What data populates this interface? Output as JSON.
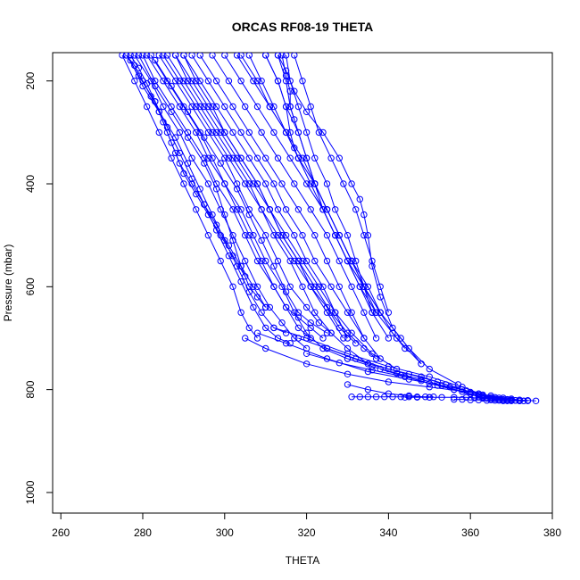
{
  "chart_data": {
    "type": "line",
    "title": "ORCAS RF08-19 THETA",
    "xlabel": "THETA",
    "ylabel": "Pressure (mbar)",
    "xlim": [
      258,
      380
    ],
    "ylim": [
      1040,
      145
    ],
    "y_reversed": true,
    "x_ticks": [
      260,
      280,
      300,
      320,
      340,
      360,
      380
    ],
    "y_ticks": [
      200,
      400,
      600,
      800,
      1000
    ],
    "grid": false,
    "legend": "none",
    "line_color": "#0000ff",
    "marker": "open-circle",
    "line_style": "solid",
    "series": [
      {
        "x": [
          275,
          278,
          281,
          284,
          287,
          290,
          293,
          296,
          299,
          302,
          304,
          306,
          308
        ],
        "y": [
          150,
          200,
          250,
          300,
          350,
          400,
          450,
          500,
          550,
          600,
          650,
          680,
          700
        ]
      },
      {
        "x": [
          276,
          279,
          283,
          286,
          289,
          292,
          295,
          298,
          301,
          304,
          307,
          310,
          313,
          316
        ],
        "y": [
          150,
          190,
          240,
          290,
          340,
          390,
          440,
          490,
          540,
          590,
          640,
          680,
          700,
          710
        ]
      },
      {
        "x": [
          277,
          280,
          284,
          288,
          291,
          294,
          297,
          300,
          303,
          306,
          309,
          312,
          315
        ],
        "y": [
          160,
          210,
          260,
          310,
          360,
          410,
          460,
          510,
          560,
          610,
          650,
          680,
          690
        ]
      },
      {
        "x": [
          278,
          282,
          285,
          289,
          292,
          296,
          299,
          302,
          305,
          308,
          311,
          314,
          317,
          320
        ],
        "y": [
          150,
          200,
          250,
          300,
          350,
          400,
          450,
          500,
          550,
          600,
          640,
          670,
          700,
          720
        ]
      },
      {
        "x": [
          280,
          283,
          287,
          291,
          295,
          298,
          302,
          305,
          308,
          312,
          315,
          318,
          321
        ],
        "y": [
          150,
          200,
          250,
          300,
          350,
          400,
          450,
          500,
          550,
          600,
          640,
          680,
          700
        ]
      },
      {
        "x": [
          282,
          286,
          290,
          294,
          297,
          300,
          304,
          307,
          310,
          314,
          317,
          320,
          324,
          330
        ],
        "y": [
          150,
          200,
          250,
          300,
          350,
          400,
          450,
          500,
          550,
          600,
          650,
          690,
          720,
          740
        ]
      },
      {
        "x": [
          284,
          288,
          292,
          296,
          300,
          303,
          306,
          310,
          313,
          316,
          320,
          323,
          326
        ],
        "y": [
          150,
          200,
          250,
          300,
          350,
          400,
          450,
          500,
          550,
          600,
          640,
          670,
          690
        ]
      },
      {
        "x": [
          286,
          290,
          294,
          298,
          302,
          306,
          309,
          312,
          316,
          319,
          322,
          326,
          330,
          335
        ],
        "y": [
          150,
          200,
          250,
          300,
          350,
          400,
          450,
          500,
          550,
          600,
          650,
          690,
          720,
          750
        ]
      },
      {
        "x": [
          288,
          292,
          296,
          300,
          304,
          308,
          311,
          314,
          318,
          321,
          325,
          328,
          332
        ],
        "y": [
          150,
          200,
          250,
          300,
          350,
          400,
          450,
          500,
          550,
          600,
          640,
          680,
          710
        ]
      },
      {
        "x": [
          290,
          294,
          298,
          302,
          306,
          310,
          313,
          317,
          320,
          324,
          327,
          331,
          336,
          342
        ],
        "y": [
          150,
          200,
          250,
          300,
          350,
          400,
          450,
          500,
          550,
          600,
          650,
          690,
          730,
          760
        ]
      },
      {
        "x": [
          292,
          296,
          300,
          304,
          308,
          312,
          315,
          319,
          322,
          326,
          330,
          334
        ],
        "y": [
          150,
          200,
          250,
          300,
          350,
          400,
          450,
          500,
          550,
          600,
          650,
          700
        ]
      },
      {
        "x": [
          294,
          298,
          302,
          306,
          310,
          314,
          318,
          322,
          325,
          328,
          331,
          334,
          338
        ],
        "y": [
          150,
          200,
          250,
          300,
          350,
          400,
          450,
          500,
          550,
          600,
          650,
          700,
          740
        ]
      },
      {
        "x": [
          297,
          301,
          305,
          309,
          313,
          317,
          321,
          325,
          328,
          331,
          334,
          337
        ],
        "y": [
          150,
          200,
          250,
          300,
          350,
          400,
          450,
          500,
          550,
          600,
          650,
          700
        ]
      },
      {
        "x": [
          300,
          304,
          308,
          312,
          316,
          320,
          324,
          327,
          330,
          333,
          336,
          340
        ],
        "y": [
          150,
          200,
          250,
          300,
          350,
          400,
          450,
          500,
          550,
          600,
          650,
          700
        ]
      },
      {
        "x": [
          303,
          307,
          311,
          315,
          319,
          322,
          325,
          328,
          331,
          334,
          338
        ],
        "y": [
          150,
          200,
          250,
          300,
          350,
          400,
          450,
          500,
          550,
          600,
          650
        ]
      },
      {
        "x": [
          306,
          309,
          312,
          315,
          318,
          321,
          324,
          327,
          330,
          334,
          338,
          343,
          348
        ],
        "y": [
          150,
          200,
          250,
          300,
          350,
          400,
          450,
          500,
          550,
          600,
          650,
          700,
          750
        ]
      },
      {
        "x": [
          310,
          313,
          315,
          318,
          320,
          322,
          325,
          328,
          331,
          334,
          337
        ],
        "y": [
          150,
          200,
          250,
          300,
          350,
          400,
          450,
          500,
          550,
          600,
          650
        ]
      },
      {
        "x": [
          313,
          315,
          316,
          318,
          320,
          322,
          324,
          327,
          330,
          333,
          337,
          342,
          348
        ],
        "y": [
          150,
          200,
          250,
          300,
          350,
          400,
          450,
          500,
          550,
          600,
          650,
          700,
          750
        ]
      },
      {
        "x": [
          310,
          313,
          315,
          316,
          317,
          318
        ],
        "y": [
          150,
          200,
          250,
          300,
          330,
          350
        ]
      },
      {
        "x": [
          314,
          315,
          316,
          316,
          317
        ],
        "y": [
          150,
          190,
          220,
          250,
          275
        ]
      },
      {
        "x": [
          315,
          316,
          318,
          320,
          322,
          325,
          327,
          330,
          332,
          334,
          336
        ],
        "y": [
          150,
          200,
          250,
          300,
          350,
          400,
          450,
          500,
          550,
          600,
          650
        ]
      },
      {
        "x": [
          317,
          319,
          321,
          323,
          326,
          329,
          332,
          334,
          336,
          338,
          340
        ],
        "y": [
          150,
          200,
          250,
          300,
          350,
          400,
          450,
          500,
          550,
          600,
          650
        ]
      },
      {
        "x": [
          313,
          315,
          317,
          320,
          324,
          328,
          331,
          333,
          334,
          335,
          336,
          338,
          341,
          345,
          350,
          357
        ],
        "y": [
          150,
          180,
          220,
          260,
          300,
          350,
          400,
          430,
          460,
          500,
          560,
          620,
          680,
          720,
          760,
          790
        ]
      },
      {
        "x": [
          290,
          293,
          297,
          300,
          304,
          308,
          311,
          314,
          318,
          322,
          326,
          330,
          334,
          337
        ],
        "y": [
          150,
          200,
          250,
          300,
          350,
          400,
          450,
          500,
          550,
          600,
          650,
          690,
          720,
          740
        ]
      },
      {
        "x": [
          304,
          308,
          311,
          315,
          318,
          322,
          325,
          328,
          331,
          335,
          338,
          341,
          344
        ],
        "y": [
          150,
          200,
          250,
          300,
          350,
          400,
          450,
          500,
          550,
          600,
          650,
          690,
          720
        ]
      },
      {
        "x": [
          279,
          283,
          287,
          291,
          295,
          298,
          300,
          302,
          304,
          306,
          308,
          310
        ],
        "y": [
          150,
          210,
          260,
          310,
          360,
          410,
          460,
          510,
          560,
          600,
          620,
          640
        ]
      },
      {
        "x": [
          281,
          285,
          289,
          293,
          296,
          300,
          303,
          306,
          309,
          312,
          315,
          318,
          321,
          324
        ],
        "y": [
          150,
          200,
          250,
          300,
          350,
          400,
          450,
          500,
          550,
          600,
          640,
          660,
          680,
          700
        ]
      },
      {
        "x": [
          283,
          287,
          291,
          295,
          299,
          303,
          306,
          309,
          312,
          315,
          318,
          321,
          325
        ],
        "y": [
          160,
          210,
          260,
          310,
          360,
          410,
          460,
          510,
          560,
          610,
          650,
          670,
          690
        ]
      },
      {
        "x": [
          276,
          278,
          280,
          282,
          284,
          286,
          288,
          290,
          293,
          296,
          299,
          302,
          305
        ],
        "y": [
          150,
          170,
          200,
          230,
          260,
          300,
          340,
          380,
          420,
          460,
          500,
          540,
          580
        ]
      },
      {
        "x": [
          277,
          279,
          281,
          283,
          285,
          287,
          289,
          292,
          295,
          298,
          301,
          304,
          307,
          310
        ],
        "y": [
          150,
          175,
          205,
          240,
          280,
          320,
          360,
          400,
          440,
          480,
          520,
          560,
          600,
          640
        ]
      },
      {
        "x": [
          285,
          289,
          293,
          297,
          301,
          305,
          309,
          313,
          317,
          321,
          325,
          329
        ],
        "y": [
          150,
          200,
          250,
          300,
          350,
          400,
          450,
          500,
          550,
          600,
          650,
          700
        ]
      },
      {
        "x": [
          288,
          291,
          295,
          299,
          303,
          307,
          311,
          315,
          319,
          323,
          327,
          330
        ],
        "y": [
          150,
          200,
          250,
          300,
          350,
          400,
          450,
          500,
          550,
          600,
          650,
          700
        ]
      },
      {
        "x": [
          305,
          310,
          320,
          330,
          340,
          350,
          360,
          365,
          368,
          370,
          372,
          374,
          376
        ],
        "y": [
          700,
          720,
          750,
          770,
          785,
          795,
          805,
          812,
          816,
          818,
          820,
          821,
          822
        ]
      },
      {
        "x": [
          308,
          315,
          325,
          335,
          345,
          355,
          362,
          366,
          369,
          371,
          373
        ],
        "y": [
          690,
          710,
          740,
          765,
          780,
          795,
          808,
          815,
          819,
          821,
          822
        ]
      },
      {
        "x": [
          312,
          320,
          330,
          340,
          350,
          358,
          363,
          367,
          370,
          372
        ],
        "y": [
          680,
          700,
          730,
          755,
          775,
          795,
          810,
          816,
          820,
          822
        ]
      },
      {
        "x": [
          318,
          325,
          335,
          345,
          352,
          358,
          362,
          365,
          368,
          370
        ],
        "y": [
          700,
          720,
          750,
          770,
          785,
          800,
          810,
          815,
          819,
          821
        ]
      },
      {
        "x": [
          325,
          332,
          340,
          348,
          354,
          359,
          363,
          366,
          368
        ],
        "y": [
          720,
          740,
          760,
          775,
          790,
          802,
          812,
          818,
          821
        ]
      },
      {
        "x": [
          330,
          336,
          342,
          348,
          353,
          358,
          362,
          365
        ],
        "y": [
          740,
          755,
          768,
          780,
          792,
          804,
          814,
          820
        ]
      },
      {
        "x": [
          320,
          328,
          336,
          344,
          350,
          356,
          361,
          364,
          367
        ],
        "y": [
          730,
          748,
          762,
          775,
          788,
          800,
          811,
          817,
          821
        ]
      },
      {
        "x": [
          338,
          343,
          348,
          352,
          356,
          360,
          363,
          366,
          369
        ],
        "y": [
          760,
          772,
          783,
          792,
          800,
          808,
          814,
          818,
          822
        ]
      },
      {
        "x": [
          330,
          335,
          340,
          345,
          350
        ],
        "y": [
          790,
          800,
          808,
          812,
          815
        ]
      },
      {
        "x": [
          331,
          333,
          335,
          337,
          339,
          341,
          343,
          345,
          347,
          349,
          351
        ],
        "y": [
          814,
          814,
          814,
          814,
          814,
          814,
          814,
          814,
          814,
          814,
          814
        ]
      },
      {
        "x": [
          344,
          347,
          350,
          353,
          356,
          359,
          361,
          363,
          365,
          367,
          369,
          371,
          373
        ],
        "y": [
          815,
          815,
          815,
          815,
          815,
          815,
          816,
          817,
          818,
          819,
          820,
          821,
          822
        ]
      },
      {
        "x": [
          356,
          358,
          360,
          362,
          364,
          366,
          368,
          370,
          372,
          374
        ],
        "y": [
          819,
          819,
          820,
          820,
          821,
          821,
          822,
          822,
          822,
          822
        ]
      }
    ]
  }
}
